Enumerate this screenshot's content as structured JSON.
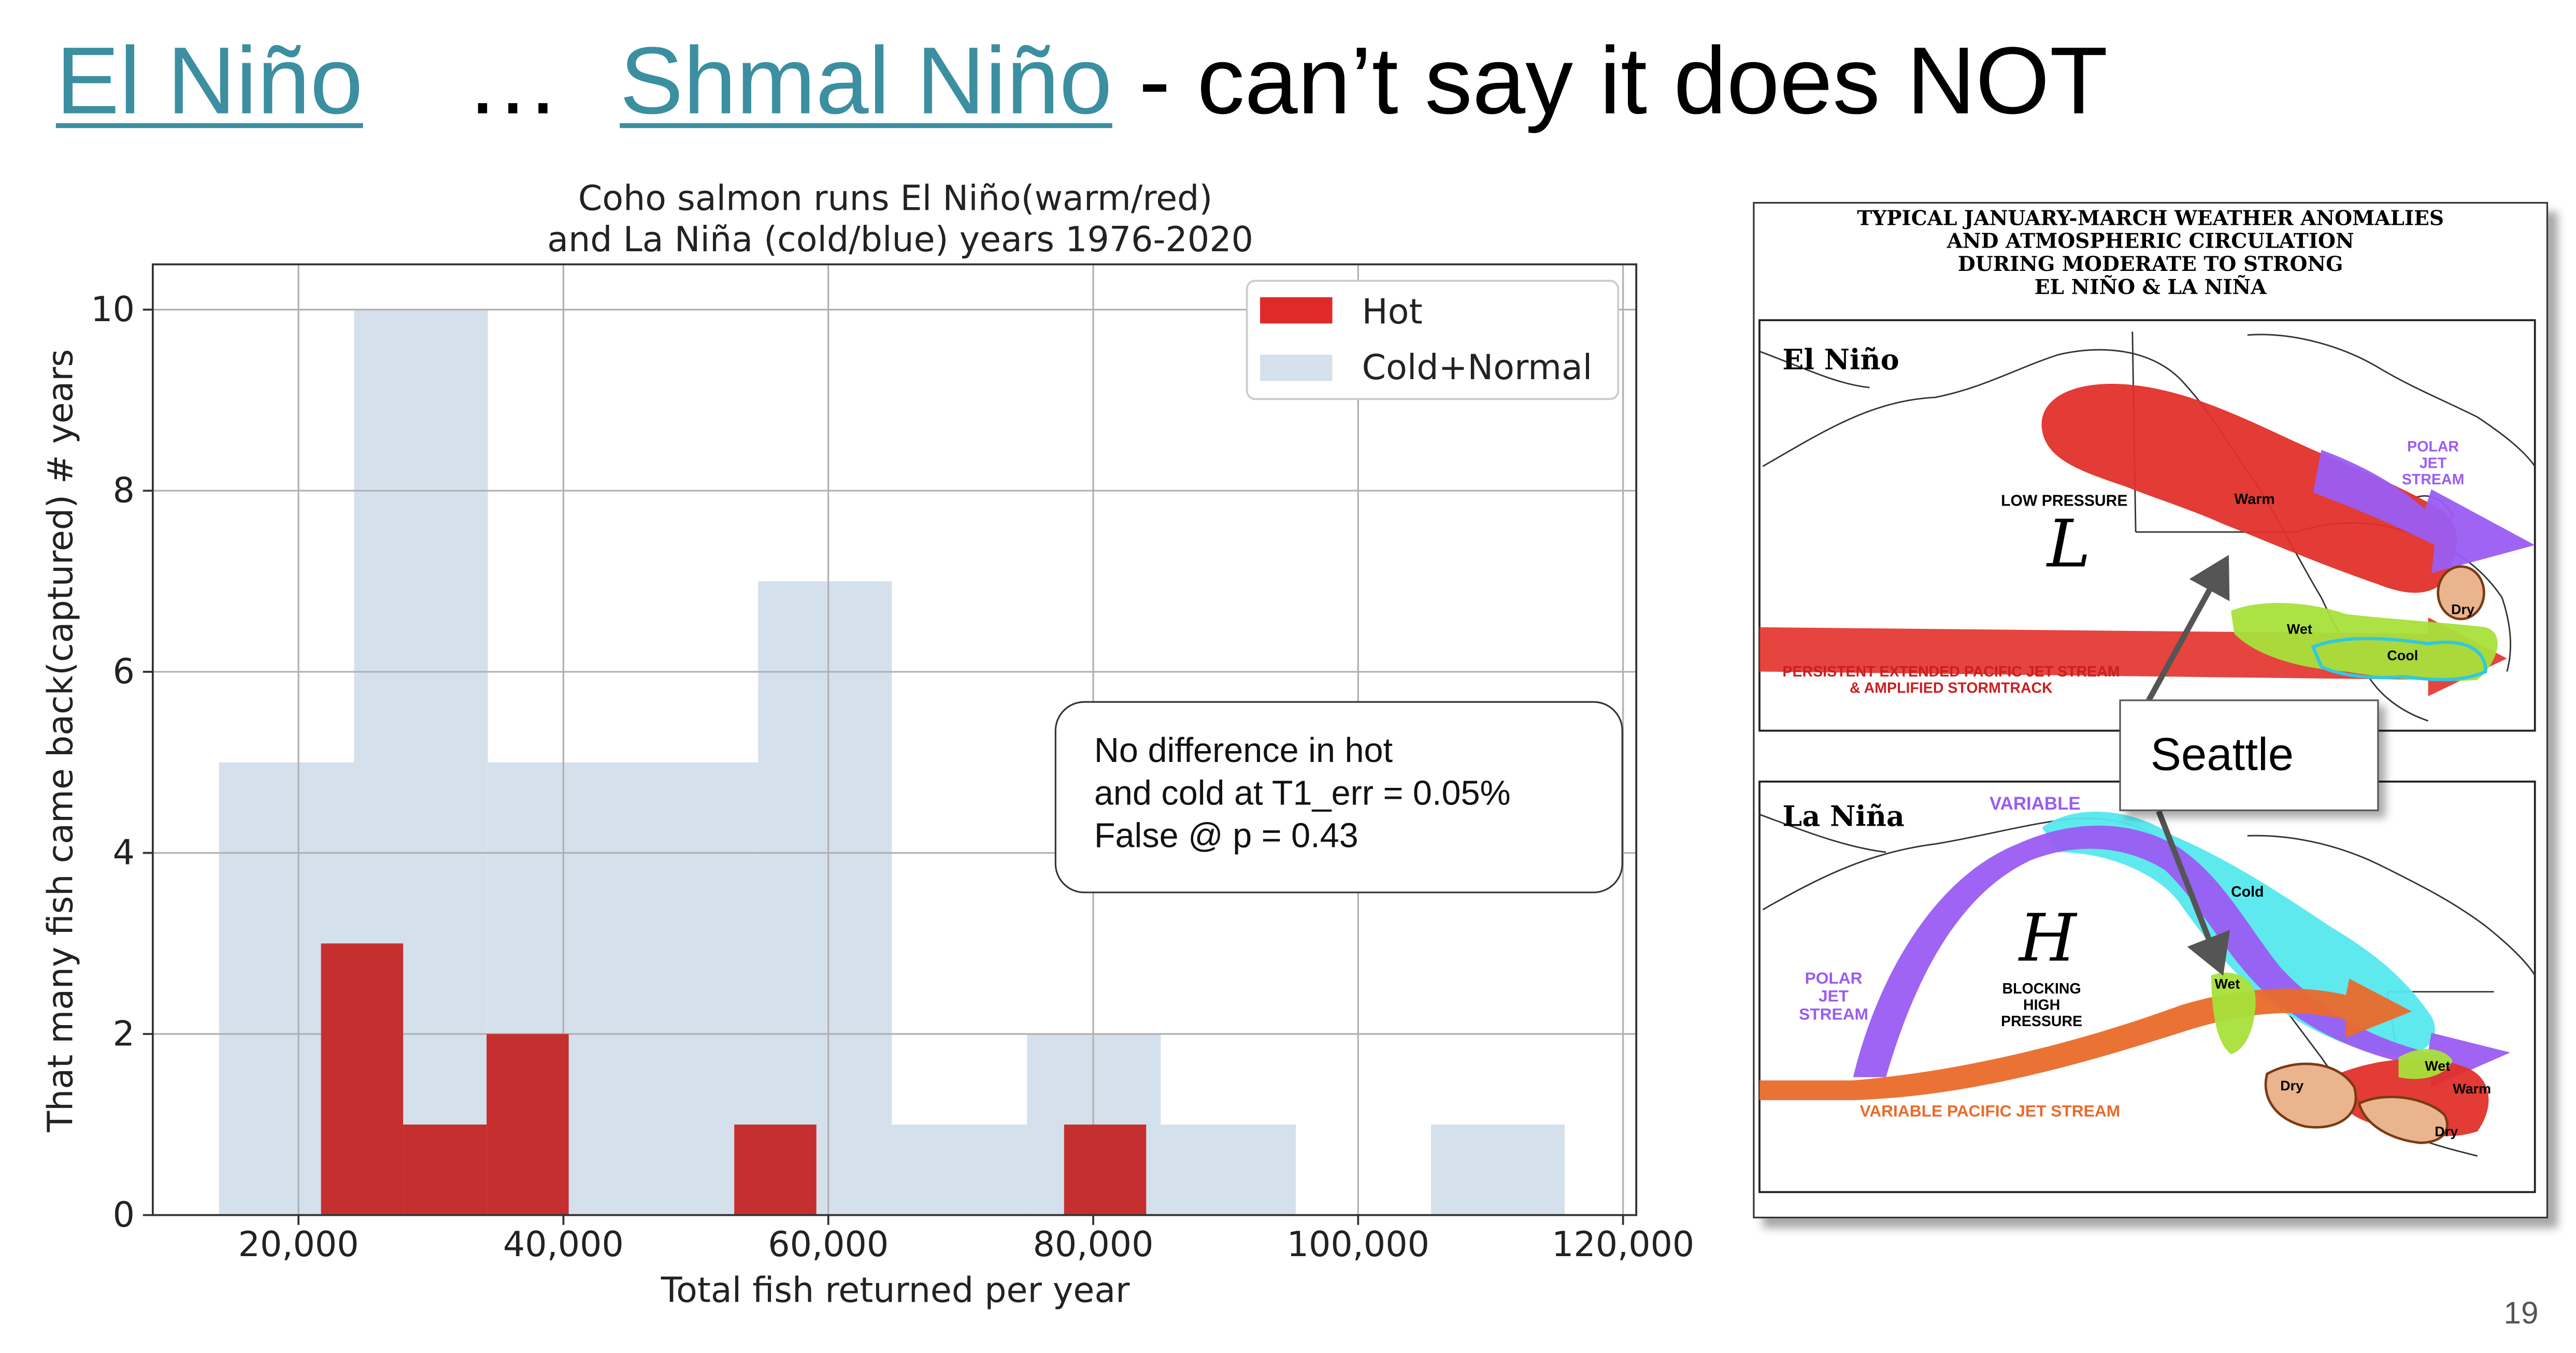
{
  "slide": {
    "title_link1": "El Niño",
    "title_sep": "…",
    "title_link2": "Shmal Niño",
    "title_rest": "- can’t say it does NOT",
    "page_number": "19"
  },
  "chart_data": {
    "type": "bar",
    "subtype": "overlaid-histogram",
    "title_line1": "Coho salmon runs El Niño(warm/red)",
    "title_line2": "and La Niña (cold/blue) years 1976-2020",
    "xlabel": "Total fish returned per year",
    "ylabel": "That many fish came back(captured) # years",
    "xlim": [
      9000,
      121000
    ],
    "ylim": [
      0,
      10.5
    ],
    "xticks": [
      20000,
      40000,
      60000,
      80000,
      100000,
      120000
    ],
    "xtick_labels": [
      "20,000",
      "40,000",
      "60,000",
      "80,000",
      "100,000",
      "120,000"
    ],
    "yticks": [
      0,
      2,
      4,
      6,
      8,
      10
    ],
    "ytick_labels": [
      "0",
      "2",
      "4",
      "6",
      "8",
      "10"
    ],
    "grid": true,
    "legend_position": "top-right",
    "series": [
      {
        "name": "Cold+Normal",
        "color": "#d4e1ec",
        "bin_edges": [
          14000,
          24200,
          34300,
          44500,
          54700,
          64800,
          75000,
          85100,
          95300,
          105500,
          115600
        ],
        "counts": [
          5,
          10,
          5,
          5,
          7,
          1,
          2,
          1,
          0,
          1
        ]
      },
      {
        "name": "Hot",
        "color": "#c62f2f",
        "legend_color": "#e02a2a",
        "bin_edges": [
          21700,
          27900,
          34200,
          40400,
          46600,
          52900,
          59100,
          65300,
          71600,
          77800,
          84000
        ],
        "counts": [
          3,
          1,
          2,
          0,
          0,
          1,
          0,
          0,
          0,
          1
        ]
      }
    ],
    "annotation": [
      "No difference in hot",
      "and cold at T1_err = 0.05%",
      "False @ p = 0.43"
    ]
  },
  "weather_map": {
    "header": [
      "TYPICAL JANUARY-MARCH WEATHER ANOMALIES",
      "AND ATMOSPHERIC CIRCULATION",
      "DURING MODERATE TO STRONG",
      "EL NIÑO & LA NIÑA"
    ],
    "el_nino": {
      "title": "El Niño",
      "low_pressure": "LOW PRESSURE",
      "low_symbol": "L",
      "warm": "Warm",
      "polar_jet": [
        "POLAR",
        "JET",
        "STREAM"
      ],
      "wet": "Wet",
      "dry": "Dry",
      "cool": "Cool",
      "pacific_jet": [
        "PERSISTENT EXTENDED PACIFIC JET STREAM",
        "& AMPLIFIED STORMTRACK"
      ]
    },
    "la_nina": {
      "title": "La Niña",
      "variable": "VARIABLE",
      "high_symbol": "H",
      "blocking": [
        "BLOCKING",
        "HIGH",
        "PRESSURE"
      ],
      "cold": "Cold",
      "polar_jet": [
        "POLAR",
        "JET",
        "STREAM"
      ],
      "wet1": "Wet",
      "wet2": "Wet",
      "warm": "Warm",
      "dry1": "Dry",
      "dry2": "Dry",
      "variable_pacific": "VARIABLE PACIFIC JET STREAM"
    },
    "callout": "Seattle",
    "colors": {
      "warm_red": "#e2302a",
      "wet_green": "#a8e03a",
      "cold_cyan": "#55e8ee",
      "jet_purple": "#9a5cf2",
      "jet_orange": "#ea6a2a",
      "dry_tan": "#e9b48e"
    }
  }
}
